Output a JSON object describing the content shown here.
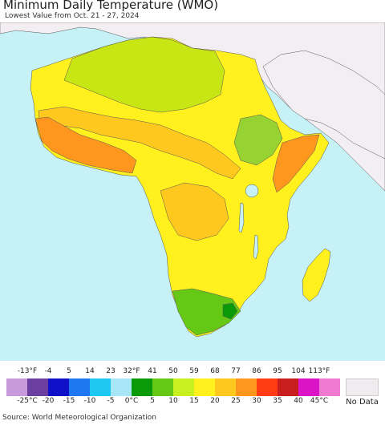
{
  "title": "Minimum Daily Temperature (WMO)",
  "subtitle": "Lowest Value from Oct. 21 - 27, 2024",
  "source": "Source: World Meteorological Organization",
  "legend": {
    "fahrenheit_ticks": [
      "-13°F",
      "-4",
      "5",
      "14",
      "23",
      "32°F",
      "41",
      "50",
      "59",
      "68",
      "77",
      "86",
      "95",
      "104",
      "113°F"
    ],
    "celsius_ticks": [
      "-25°C",
      "-20",
      "-15",
      "-10",
      "-5",
      "0°C",
      "5",
      "10",
      "15",
      "20",
      "25",
      "30",
      "35",
      "40",
      "45°C"
    ],
    "colors": [
      "#c89adc",
      "#6b3fa0",
      "#1010c8",
      "#1e78f0",
      "#1ec8f0",
      "#a6e6f6",
      "#0a9a0a",
      "#64c814",
      "#c8f01e",
      "#fff01e",
      "#ffc81e",
      "#ff961e",
      "#ff3c14",
      "#c81e1e",
      "#dc14c8",
      "#f07ad2"
    ],
    "no_data_label": "No Data",
    "no_data_color": "#efebef"
  },
  "map": {
    "ocean_color": "#c6f2f7",
    "non_data_land_color": "#f2eef2",
    "main_land_color": "#fff01e",
    "region_colors": {
      "sahara_north": "#c8e614",
      "sahel_warm": "#ffc81e",
      "west_coast_hot": "#ff961e",
      "horn_cool": "#96d232",
      "south_cool": "#64c814",
      "lesotho_cold": "#0a9a0a"
    }
  }
}
